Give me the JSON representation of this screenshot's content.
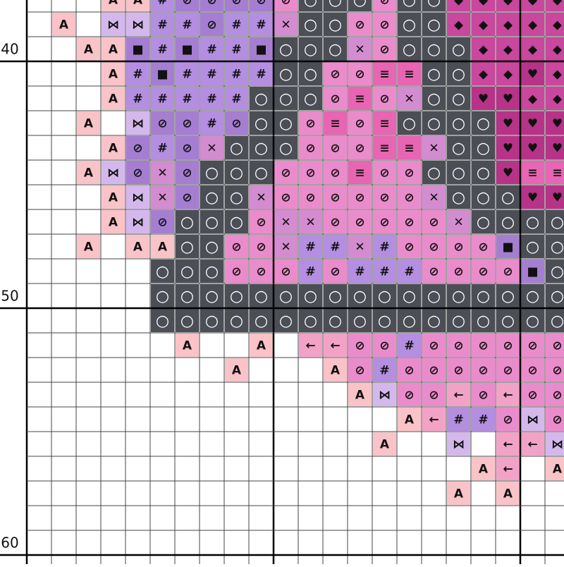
{
  "legend": [
    {
      "symbol": "A",
      "color": "#f9c3c8"
    },
    {
      "symbol": "⋈",
      "color": "#d4b8ec"
    },
    {
      "symbol": "#",
      "color": "#b48ee0"
    },
    {
      "symbol": "⊘",
      "color": "#a57ed2"
    },
    {
      "symbol": "⊘",
      "color": "#ea8ccb"
    },
    {
      "symbol": "✕",
      "color": "#d38ccf"
    },
    {
      "symbol": "○",
      "color": "#4c4e56"
    },
    {
      "symbol": "■",
      "color": "#a57ed2"
    },
    {
      "symbol": "≡",
      "color": "#e765b3"
    },
    {
      "symbol": "◆",
      "color": "#c9479d"
    },
    {
      "symbol": "♥",
      "color": "#b73388"
    },
    {
      "symbol": "←",
      "color": "#f3a2c7"
    }
  ],
  "rows": [
    [
      null,
      null,
      null,
      0,
      0,
      2,
      3,
      3,
      3,
      3,
      4,
      6,
      6,
      6,
      4,
      6,
      6,
      9,
      9,
      9,
      9,
      9
    ],
    [
      null,
      0,
      null,
      1,
      1,
      2,
      2,
      3,
      2,
      2,
      5,
      6,
      6,
      4,
      4,
      6,
      6,
      9,
      9,
      9,
      9,
      9
    ],
    [
      null,
      null,
      0,
      0,
      7,
      2,
      7,
      2,
      2,
      7,
      6,
      6,
      6,
      5,
      4,
      6,
      6,
      6,
      9,
      9,
      9,
      9
    ],
    [
      null,
      null,
      null,
      0,
      2,
      7,
      2,
      2,
      2,
      2,
      6,
      6,
      4,
      4,
      8,
      8,
      6,
      6,
      9,
      9,
      10,
      9
    ],
    [
      null,
      null,
      null,
      0,
      2,
      2,
      2,
      2,
      2,
      6,
      6,
      6,
      4,
      8,
      4,
      5,
      6,
      6,
      10,
      10,
      9,
      9
    ],
    [
      null,
      null,
      0,
      null,
      1,
      3,
      3,
      2,
      3,
      6,
      6,
      4,
      8,
      4,
      8,
      6,
      6,
      6,
      6,
      10,
      10,
      10
    ],
    [
      null,
      null,
      null,
      0,
      3,
      2,
      3,
      5,
      6,
      6,
      6,
      4,
      4,
      4,
      8,
      8,
      5,
      6,
      6,
      10,
      10,
      10
    ],
    [
      null,
      null,
      0,
      1,
      3,
      5,
      3,
      6,
      6,
      6,
      4,
      4,
      4,
      8,
      4,
      4,
      6,
      6,
      6,
      10,
      8,
      8
    ],
    [
      null,
      null,
      null,
      0,
      1,
      5,
      3,
      6,
      6,
      5,
      4,
      4,
      4,
      4,
      4,
      4,
      5,
      6,
      6,
      6,
      10,
      10
    ],
    [
      null,
      null,
      null,
      0,
      1,
      3,
      6,
      6,
      6,
      4,
      5,
      5,
      4,
      4,
      4,
      4,
      4,
      5,
      6,
      6,
      6,
      6
    ],
    [
      null,
      null,
      0,
      null,
      0,
      0,
      6,
      6,
      4,
      4,
      5,
      2,
      2,
      5,
      2,
      4,
      4,
      4,
      4,
      7,
      6,
      6
    ],
    [
      null,
      null,
      null,
      null,
      null,
      6,
      6,
      6,
      4,
      4,
      4,
      2,
      4,
      2,
      2,
      2,
      4,
      4,
      4,
      4,
      7,
      6
    ],
    [
      null,
      null,
      null,
      null,
      null,
      6,
      6,
      6,
      6,
      6,
      6,
      6,
      6,
      6,
      6,
      6,
      6,
      6,
      6,
      6,
      6,
      6
    ],
    [
      null,
      null,
      null,
      null,
      null,
      6,
      6,
      6,
      6,
      6,
      6,
      6,
      6,
      6,
      6,
      6,
      6,
      6,
      6,
      6,
      6,
      6
    ],
    [
      null,
      null,
      null,
      null,
      null,
      null,
      0,
      null,
      null,
      0,
      null,
      11,
      11,
      4,
      4,
      2,
      4,
      4,
      4,
      4,
      4,
      4
    ],
    [
      null,
      null,
      null,
      null,
      null,
      null,
      null,
      null,
      0,
      null,
      null,
      null,
      0,
      4,
      2,
      4,
      4,
      4,
      4,
      4,
      4,
      4
    ],
    [
      null,
      null,
      null,
      null,
      null,
      null,
      null,
      null,
      null,
      null,
      null,
      null,
      null,
      0,
      1,
      4,
      4,
      11,
      4,
      11,
      4,
      4
    ],
    [
      null,
      null,
      null,
      null,
      null,
      null,
      null,
      null,
      null,
      null,
      null,
      null,
      null,
      null,
      null,
      0,
      11,
      2,
      2,
      4,
      1,
      4
    ],
    [
      null,
      null,
      null,
      null,
      null,
      null,
      null,
      null,
      null,
      null,
      null,
      null,
      null,
      null,
      0,
      null,
      null,
      1,
      null,
      11,
      11,
      1
    ],
    [
      null,
      null,
      null,
      null,
      null,
      null,
      null,
      null,
      null,
      null,
      null,
      null,
      null,
      null,
      null,
      null,
      null,
      null,
      0,
      11,
      null,
      0
    ],
    [
      null,
      null,
      null,
      null,
      null,
      null,
      null,
      null,
      null,
      null,
      null,
      null,
      null,
      null,
      null,
      null,
      null,
      0,
      null,
      0,
      null,
      null
    ]
  ],
  "row_labels": [
    "40",
    "50",
    "60"
  ]
}
